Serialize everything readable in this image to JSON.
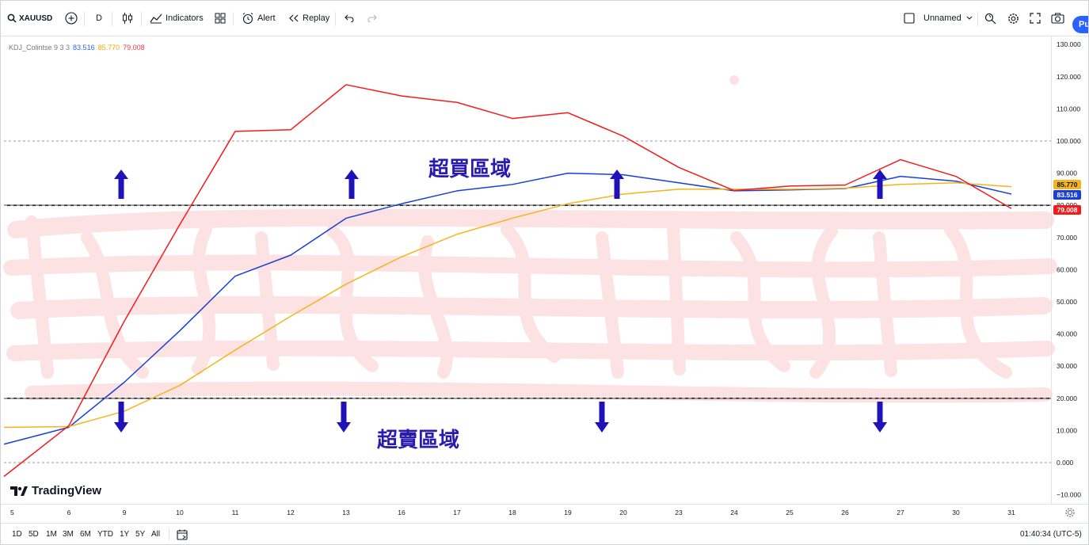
{
  "toolbar": {
    "symbol": "XAUUSD",
    "interval": "D",
    "indicators_label": "Indicators",
    "alert_label": "Alert",
    "replay_label": "Replay",
    "layout_name": "Unnamed",
    "publish_label": "Pu"
  },
  "legend": {
    "name": "KDJ_Colintse 9 3 3",
    "k_value": "83.516",
    "d_value": "85.770",
    "j_value": "79.008"
  },
  "annotations": {
    "overbought": "超買區域",
    "oversold": "超賣區域"
  },
  "branding": {
    "logo_text": "TradingView"
  },
  "bottombar": {
    "ranges": [
      "1D",
      "5D",
      "1M",
      "3M",
      "6M",
      "YTD",
      "1Y",
      "5Y",
      "All"
    ],
    "clock": "01:40:34 (UTC-5)"
  },
  "colors": {
    "k": "#1a3fd6",
    "d": "#f5b41a",
    "j": "#f21c1c",
    "arrow": "#1f12b8",
    "text_blue": "#2a1bb0"
  },
  "icons": [
    "search-icon",
    "add-symbol-icon",
    "candles-icon",
    "indicators-icon",
    "templates-icon",
    "alert-icon",
    "replay-icon",
    "undo-icon",
    "redo-icon",
    "checkbox-icon",
    "chevron-down-icon",
    "quick-search-icon",
    "settings-icon",
    "fullscreen-icon",
    "camera-icon",
    "calendar-range-icon",
    "gear-icon"
  ],
  "chart_data": {
    "type": "line",
    "x": [
      "5",
      "6",
      "9",
      "10",
      "11",
      "12",
      "13",
      "16",
      "17",
      "18",
      "19",
      "20",
      "23",
      "24",
      "25",
      "26",
      "27",
      "30",
      "31"
    ],
    "series": [
      {
        "name": "K",
        "values": [
          6.5,
          11,
          25,
          41,
          58,
          64.5,
          76,
          80.5,
          84.5,
          86.5,
          90,
          89.5,
          87,
          84.5,
          84.8,
          85.2,
          89,
          87.5,
          83.5
        ]
      },
      {
        "name": "D",
        "values": [
          11,
          11.2,
          16,
          24,
          35,
          45.5,
          55.5,
          64,
          71,
          76,
          80.5,
          83.5,
          85,
          85,
          85,
          85.3,
          86.5,
          87,
          85.8
        ]
      },
      {
        "name": "J",
        "values": [
          -2,
          11.5,
          44,
          74,
          103,
          103.5,
          117.5,
          114,
          112,
          107,
          108.8,
          101.5,
          91.8,
          84.6,
          86,
          86.3,
          94.2,
          89,
          79
        ]
      }
    ],
    "ylim": [
      -12.5,
      131
    ],
    "yticks": [
      "130.000",
      "120.000",
      "110.000",
      "100.000",
      "90.000",
      "80.000",
      "70.000",
      "60.000",
      "50.000",
      "40.000",
      "30.000",
      "20.000",
      "10.000",
      "0.000",
      "−10.000"
    ],
    "reference_lines": [
      100,
      80,
      20,
      0
    ],
    "up_arrows_at": [
      "9",
      "13",
      "20",
      "27"
    ],
    "down_arrows_at": [
      "9",
      "13",
      "20",
      "27"
    ]
  }
}
